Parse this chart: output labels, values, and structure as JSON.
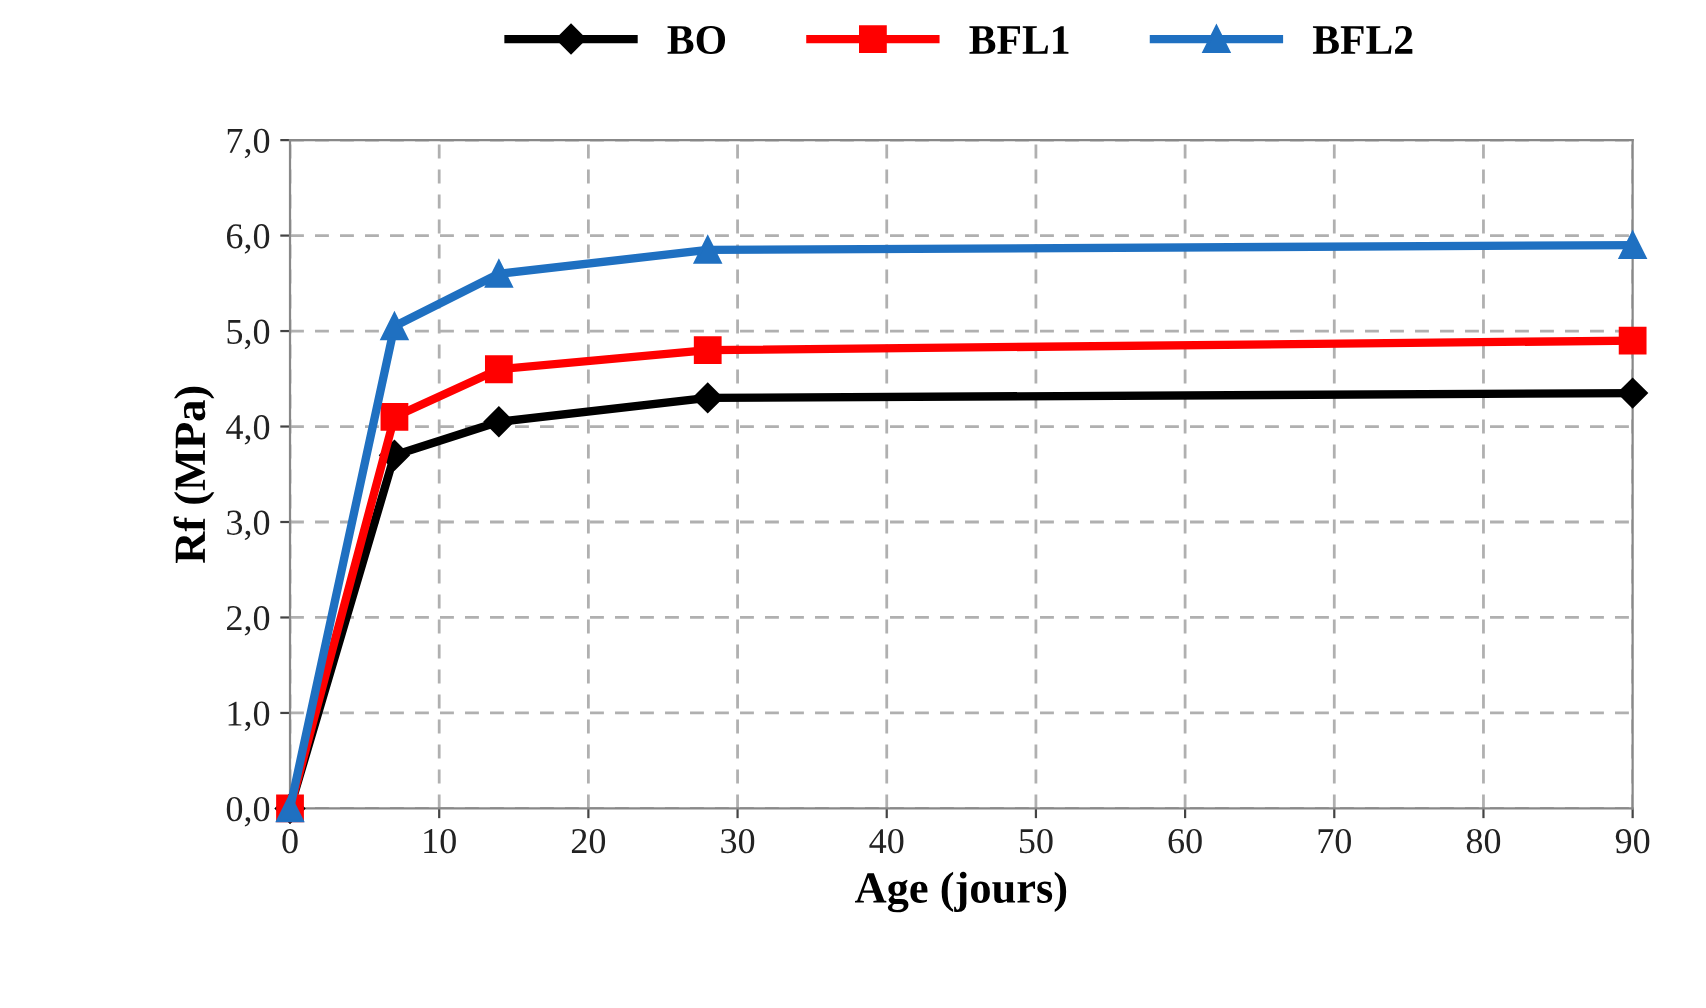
{
  "chart_data": {
    "type": "line",
    "xlabel": "Age (jours)",
    "ylabel": "Rf (MPa)",
    "x": [
      0,
      7,
      14,
      28,
      90
    ],
    "series": [
      {
        "name": "BO",
        "color": "#000000",
        "marker": "diamond",
        "values": [
          0,
          3.7,
          4.05,
          4.3,
          4.35
        ]
      },
      {
        "name": "BFL1",
        "color": "#ff0000",
        "marker": "square",
        "values": [
          0,
          4.1,
          4.6,
          4.8,
          4.9
        ]
      },
      {
        "name": "BFL2",
        "color": "#1f70c1",
        "marker": "triangle",
        "values": [
          0,
          5.05,
          5.6,
          5.85,
          5.9
        ]
      }
    ],
    "xlim": [
      0,
      90
    ],
    "xticks": [
      0,
      10,
      20,
      30,
      40,
      50,
      60,
      70,
      80,
      90
    ],
    "ylim": [
      0,
      7
    ],
    "yticks": [
      {
        "value": 0,
        "label": "0,0"
      },
      {
        "value": 1,
        "label": "1,0"
      },
      {
        "value": 2,
        "label": "2,0"
      },
      {
        "value": 3,
        "label": "3,0"
      },
      {
        "value": 4,
        "label": "4,0"
      },
      {
        "value": 5,
        "label": "5,0"
      },
      {
        "value": 6,
        "label": "6,0"
      },
      {
        "value": 7,
        "label": "7,0"
      }
    ],
    "grid": true,
    "legend": "top",
    "line_style": "solid"
  }
}
